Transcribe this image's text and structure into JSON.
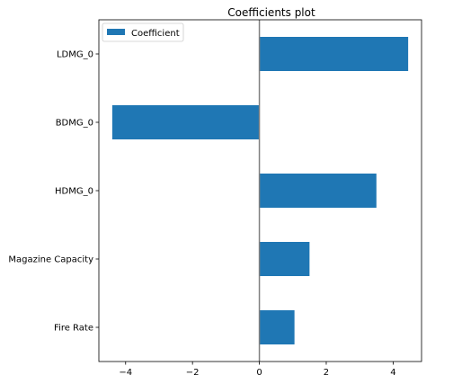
{
  "chart_data": {
    "type": "bar",
    "orientation": "horizontal",
    "title": "Coefficients plot",
    "categories": [
      "LDMG_0",
      "BDMG_0",
      "HDMG_0",
      "Magazine Capacity",
      "Fire Rate"
    ],
    "series": [
      {
        "name": "Coefficient",
        "values": [
          4.45,
          -4.4,
          3.5,
          1.5,
          1.05
        ],
        "color": "#1f77b4"
      }
    ],
    "xlim": [
      -4.8,
      4.85
    ],
    "xticks": [
      -4,
      -2,
      0,
      2,
      4
    ],
    "xtick_labels": [
      "−4",
      "−2",
      "0",
      "2",
      "4"
    ],
    "xlabel": "",
    "ylabel": "",
    "grid": false,
    "legend": {
      "placement": "top-left",
      "entries": [
        "Coefficient"
      ]
    },
    "reference_line": {
      "x": 0,
      "color": "#808080"
    }
  }
}
